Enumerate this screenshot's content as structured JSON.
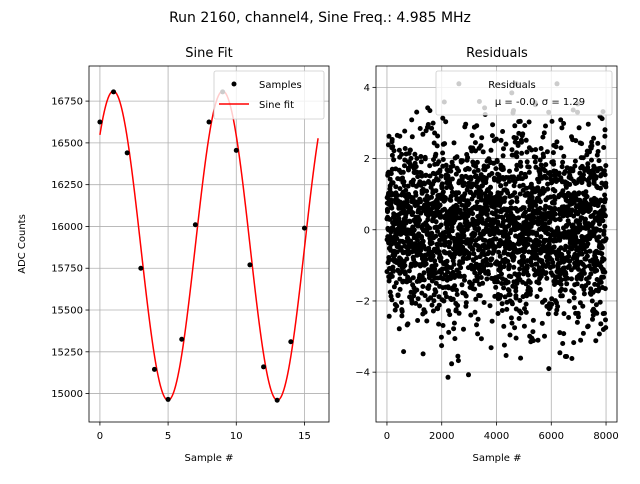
{
  "figure": {
    "suptitle": "Run 2160, channel4, Sine Freq.: 4.985 MHz"
  },
  "chart_data": [
    {
      "type": "line",
      "title": "Sine Fit",
      "xlabel": "Sample #",
      "ylabel": "ADC Counts",
      "xlim": [
        -0.8,
        16.8
      ],
      "ylim": [
        14830,
        16960
      ],
      "xticks": [
        0,
        5,
        10,
        15
      ],
      "yticks": [
        15000,
        15250,
        15500,
        15750,
        16000,
        16250,
        16500,
        16750
      ],
      "grid": true,
      "legend_position": "top-right",
      "series": [
        {
          "name": "Samples",
          "kind": "scatter",
          "color": "#000000",
          "x": [
            0,
            1,
            2,
            3,
            4,
            5,
            6,
            7,
            8,
            9,
            10,
            11,
            12,
            13,
            14,
            15
          ],
          "y": [
            16625,
            16805,
            16440,
            15750,
            15145,
            14965,
            15325,
            16010,
            16625,
            16805,
            16455,
            15770,
            15160,
            14960,
            15310,
            15990
          ]
        },
        {
          "name": "Sine fit",
          "kind": "line",
          "color": "#ff0000",
          "function": {
            "offset": 15885,
            "amplitude": 925,
            "period_samples": 8.02,
            "phase_shift_samples": 1.02,
            "x_range": [
              0,
              16
            ]
          }
        }
      ]
    },
    {
      "type": "scatter",
      "title": "Residuals",
      "xlabel": "Sample #",
      "ylabel": "",
      "xlim": [
        -400,
        8400
      ],
      "ylim": [
        -5.4,
        4.6
      ],
      "xticks": [
        0,
        2000,
        4000,
        6000,
        8000
      ],
      "yticks": [
        -4,
        -2,
        0,
        2,
        4
      ],
      "grid": true,
      "legend_position": "top-right",
      "legend_entries": [
        "Residuals",
        "μ = -0.0, σ = 1.29"
      ],
      "stats": {
        "mean": -0.0,
        "std": 1.29,
        "n_points": 8000,
        "x_range": [
          0,
          7999
        ]
      },
      "series": [
        {
          "name": "Residuals",
          "color": "#000000"
        }
      ]
    }
  ]
}
